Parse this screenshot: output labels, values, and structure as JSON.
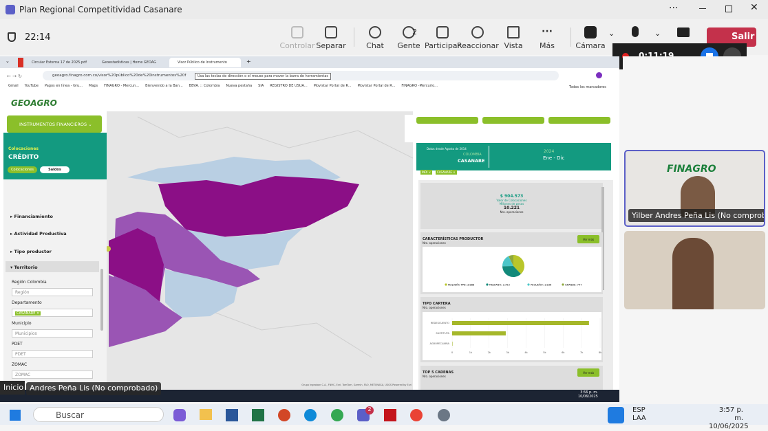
{
  "teams": {
    "title": "Plan Regional Competitividad Casanare",
    "elapsed": "22:14",
    "buttons": [
      "Controlar",
      "Separar",
      "Chat",
      "Gente",
      "Participar",
      "Reaccionar",
      "Vista",
      "Más",
      "Cámara"
    ],
    "people_count": 2,
    "leave": "Salir",
    "recording": "0:11:19"
  },
  "browser": {
    "tabs": [
      "Circular Externa 17 de 2025.pdf",
      "Geoestadísticas | Home GEOAG",
      "Visor Público de Instrumento"
    ],
    "url": "geoagro.finagro.com.co/visor%20público%20de%20instrumentos%20f",
    "tooltip": "Usa las teclas de dirección o el mouse para mover la barra de herramientas",
    "bookmarks": [
      "Gmail",
      "YouTube",
      "Pagos en línea - Gru...",
      "Maps",
      "FINAGRO - Mercun...",
      "Bienvenido a la Ban...",
      "BBVA. :: Colombia",
      "Nueva pestaña",
      "SIA",
      "REGISTRO DE USUA...",
      "Movistar Portal de R...",
      "Movistar Portal de R...",
      "FINAGRO -Mercurio..."
    ],
    "all_bookmarks": "Todos los marcadores"
  },
  "app": {
    "logo": "GEOAGRO",
    "menu": "INSTRUMENTOS FINANCIEROS",
    "section": "Colocaciones",
    "heading": "CRÉDITO",
    "toggles": [
      "Colocaciones",
      "Saldos"
    ],
    "filters": [
      "Financiamiento",
      "Actividad Productiva",
      "Tipo productor",
      "Territorio"
    ],
    "fields": [
      {
        "label": "Región Colombia",
        "placeholder": "Región"
      },
      {
        "label": "Departamento",
        "chip": "CASANARE"
      },
      {
        "label": "Municipio",
        "placeholder": "Municipios"
      },
      {
        "label": "PDET",
        "placeholder": "PDET"
      },
      {
        "label": "ZOMAC",
        "placeholder": "ZOMAC"
      }
    ],
    "map_attribution": "Grupo Ingeoban C.A., FNHC, Esri, TomTom, Garmin, FAO, METI/NASA, USGS   Powered by Esri"
  },
  "dashboard": {
    "since": "Datos desde Agosto de 2014",
    "country": "COLOMBIA",
    "department": "CASANARE",
    "year": "2024",
    "period": "Ene - Dic",
    "chips": [
      "INDI",
      "CASANARE"
    ],
    "kpi": {
      "value": "$ 904.573",
      "value_caption": "Valor de Colocaciones Millones de pesos",
      "count": "10.221",
      "count_caption": "Nro. operaciones"
    },
    "see_more": "Ver más",
    "producer": {
      "title": "CARACTERÍSTICAS PRODUCTOR",
      "subtitle": "Nro. operaciones",
      "pie": {
        "labels": [
          "PEQUEÑO PPB: 3.888",
          "MEDIANO: 3.753",
          "PEQUEÑO: 1.836",
          "GRANDE: 747"
        ],
        "values": [
          3888,
          3753,
          1836,
          747
        ],
        "colors": [
          "#b9c62b",
          "#12897a",
          "#4cc6c8",
          "#8fa93d"
        ]
      }
    },
    "portfolio": {
      "title": "TIPO CARTERA",
      "subtitle": "Nro. operaciones",
      "bar": {
        "categories": [
          "REDESCUENTO",
          "SUSTITUTA",
          "AGROPECUARIA"
        ],
        "values": [
          7400,
          2900,
          20
        ],
        "color": "#a5b72a",
        "xlim": [
          0,
          8000
        ],
        "xticks": [
          0,
          {
            "value": 1000,
            "label": "1k"
          },
          {
            "value": 2000,
            "label": "2k"
          },
          {
            "value": 3000,
            "label": "3k"
          },
          {
            "value": 4000,
            "label": "4k"
          },
          {
            "value": 5000,
            "label": "5k"
          },
          {
            "value": 6000,
            "label": "6k"
          },
          {
            "value": 7000,
            "label": "7k"
          },
          {
            "value": 8000,
            "label": "8k"
          }
        ]
      }
    },
    "chains": {
      "title": "TOP 5 CADENAS",
      "subtitle": "Nro. operaciones"
    }
  },
  "inner_clock": {
    "time": "3:56 p. m.",
    "date": "10/06/2025"
  },
  "participants": [
    "Yilber Andres Peña Lis (No comprob..."
  ],
  "overlay": {
    "start": "Inicio",
    "name": "Andres Peña Lis (No comprobado)"
  },
  "taskbar": {
    "search": "Buscar",
    "badge": 2,
    "lang": "ESP",
    "region": "LAA",
    "time": "3:57 p. m.",
    "date": "10/06/2025"
  }
}
